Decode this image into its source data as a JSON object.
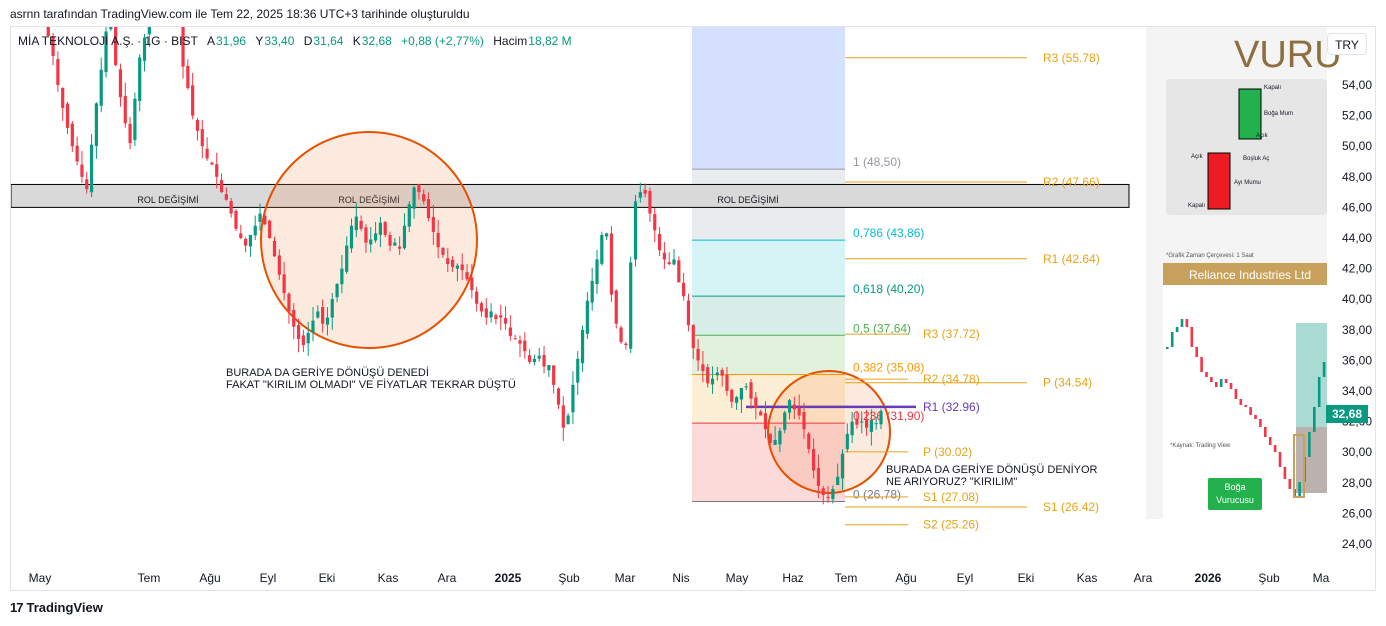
{
  "caption": "asrnn tarafından TradingView.com ile Tem 22, 2025 18:36 UTC+3 tarihinde oluşturuldu",
  "legend": {
    "symbol": "MİA TEKNOLOJİ A.Ş. · 1G · BIST",
    "open_label": "A",
    "open": "31,96",
    "high_label": "Y",
    "high": "33,40",
    "low_label": "D",
    "low": "31,64",
    "close_label": "K",
    "close": "32,68",
    "change": "+0,88 (+2,77%)",
    "volume_label": "Hacim",
    "volume": "18,82 M"
  },
  "currency": "TRY",
  "footer": "TradingView",
  "colors": {
    "up": "#089981",
    "down": "#f23645",
    "orange": "#e65100",
    "fib_gold": "#e8a317",
    "pivot_purple": "#673ab7"
  },
  "chart_data": {
    "type": "candlestick",
    "x_axis_labels": [
      "May",
      "Tem",
      "Ağu",
      "Eyl",
      "Eki",
      "Kas",
      "Ara",
      "2025",
      "Şub",
      "Mar",
      "Nis",
      "May",
      "Haz",
      "Tem",
      "Ağu",
      "Eyl",
      "Eki",
      "Kas",
      "Ara",
      "2026",
      "Şub",
      "Ma"
    ],
    "y_axis_labels": [
      "54,00",
      "52,00",
      "50,00",
      "48,00",
      "46,00",
      "44,00",
      "42,00",
      "40,00",
      "38,00",
      "36,00",
      "34,00",
      "32,00",
      "30,00",
      "28,00",
      "26,00",
      "24,00"
    ],
    "ylim": [
      23,
      57
    ],
    "last_price": "32,68",
    "closes": [
      60.0,
      61.2,
      59.8,
      58.5,
      57.2,
      55.9,
      54.0,
      52.5,
      51.2,
      50.0,
      49.0,
      48.0,
      47.2,
      50.1,
      52.8,
      55.0,
      57.5,
      58.6,
      55.3,
      53.2,
      51.5,
      50.2,
      53.1,
      55.8,
      57.1,
      59.0,
      60.2,
      61.4,
      59.8,
      58.1,
      60.5,
      58.0,
      55.2,
      53.8,
      52.0,
      51.0,
      50.0,
      49.2,
      48.8,
      48.0,
      47.0,
      46.5,
      45.6,
      44.6,
      44.0,
      43.5,
      44.2,
      44.8,
      45.6,
      44.9,
      44.0,
      42.8,
      41.6,
      40.4,
      39.2,
      38.2,
      37.4,
      37.0,
      37.8,
      38.6,
      39.2,
      38.4,
      38.8,
      40.0,
      41.0,
      42.0,
      43.5,
      44.8,
      45.4,
      44.6,
      43.7,
      43.9,
      44.3,
      45.0,
      44.2,
      43.5,
      43.7,
      43.3,
      44.8,
      46.2,
      47.3,
      47.0,
      46.4,
      45.3,
      44.4,
      43.4,
      42.9,
      42.3,
      42.1,
      42.2,
      41.9,
      41.3,
      40.6,
      39.7,
      39.2,
      38.8,
      39.2,
      38.7,
      38.8,
      38.4,
      37.6,
      37.4,
      37.1,
      36.6,
      35.9,
      36.1,
      36.3,
      35.6,
      35.7,
      34.4,
      33.1,
      31.6,
      32.4,
      34.4,
      36.1,
      38.0,
      39.9,
      41.2,
      42.6,
      44.2,
      44.3,
      40.3,
      38.4,
      37.2,
      37.0,
      42.4,
      46.4,
      47.0,
      46.9,
      45.6,
      44.5,
      43.2,
      42.6,
      42.3,
      42.6,
      41.1,
      40.2,
      38.3,
      36.8,
      36.0,
      35.3,
      34.5,
      34.8,
      35.2,
      35.0,
      34.0,
      33.3,
      33.6,
      34.2,
      34.3,
      33.5,
      32.9,
      32.4,
      31.5,
      30.6,
      30.8,
      31.4,
      32.6,
      33.4,
      32.8,
      32.4,
      31.5,
      30.2,
      28.8,
      27.8,
      27.2,
      27.0,
      27.6,
      28.4,
      29.9,
      31.2,
      32.0,
      31.8,
      32.0,
      31.6,
      32.1,
      31.9,
      32.7
    ],
    "annotations": [
      {
        "type": "zone",
        "label": "ROL DEĞİŞİMİ"
      },
      {
        "type": "zone",
        "label": "ROL DEĞİŞİMİ"
      },
      {
        "type": "zone",
        "label": "ROL DEĞİŞİMİ"
      },
      {
        "type": "text",
        "lines": [
          "BURADA DA GERİYE DÖNÜŞÜ DENEDİ",
          "FAKAT \"KIRILIM OLMADI\" VE FİYATLAR TEKRAR DÜŞTÜ"
        ]
      },
      {
        "type": "text",
        "lines": [
          "BURADA DA GERİYE DÖNÜŞÜ DENİYOR",
          "NE ARIYORUZ? \"KIRILIM\""
        ]
      }
    ],
    "fibonacci": [
      {
        "label": "1 (48,50)",
        "level": 48.5,
        "color": "#9598a1"
      },
      {
        "label": "0,786 (43,86)",
        "level": 43.86,
        "color": "#00bcd4"
      },
      {
        "label": "0,618 (40,20)",
        "level": 40.2,
        "color": "#089981"
      },
      {
        "label": "0,5 (37,64)",
        "level": 37.64,
        "color": "#4caf50"
      },
      {
        "label": "0,382 (35,08)",
        "level": 35.08,
        "color": "#ff9800"
      },
      {
        "label": "0,236 (31,90)",
        "level": 31.9,
        "color": "#f23645"
      },
      {
        "label": "0 (26,78)",
        "level": 26.78,
        "color": "#787b86"
      }
    ],
    "pivots_long": [
      {
        "label": "R3 (55.78)",
        "level": 55.78
      },
      {
        "label": "R2 (47.66)",
        "level": 47.66
      },
      {
        "label": "R1 (42.64)",
        "level": 42.64
      },
      {
        "label": "P (34.54)",
        "level": 34.54
      },
      {
        "label": "S1 (26.42)",
        "level": 26.42
      }
    ],
    "pivots_short": [
      {
        "label": "R3 (37.72)",
        "level": 37.72,
        "color": "#e8a317"
      },
      {
        "label": "R2 (34.78)",
        "level": 34.78,
        "color": "#e8a317"
      },
      {
        "label": "R1 (32.96)",
        "level": 32.96,
        "color": "#673ab7"
      },
      {
        "label": "P (30.02)",
        "level": 30.02,
        "color": "#e8a317"
      },
      {
        "label": "S1 (27.08)",
        "level": 27.08,
        "color": "#e8a317"
      },
      {
        "label": "S2 (25.26)",
        "level": 25.26,
        "color": "#e8a317"
      }
    ]
  },
  "inset": {
    "title": "VURU",
    "candle_labels": [
      "Kapalı",
      "Boğa Mum",
      "Açık",
      "Boşluk Aç",
      "Açık",
      "Ayı Mumu",
      "Kapalı"
    ],
    "timeframe_note": "*Grafik Zaman Çerçevesi: 1 Saat",
    "mini_chart_title": "Reliance Industries Ltd",
    "source_note": "*Kaynak: Trading View",
    "button_line1": "Boğa",
    "button_line2": "Vurucusu"
  }
}
